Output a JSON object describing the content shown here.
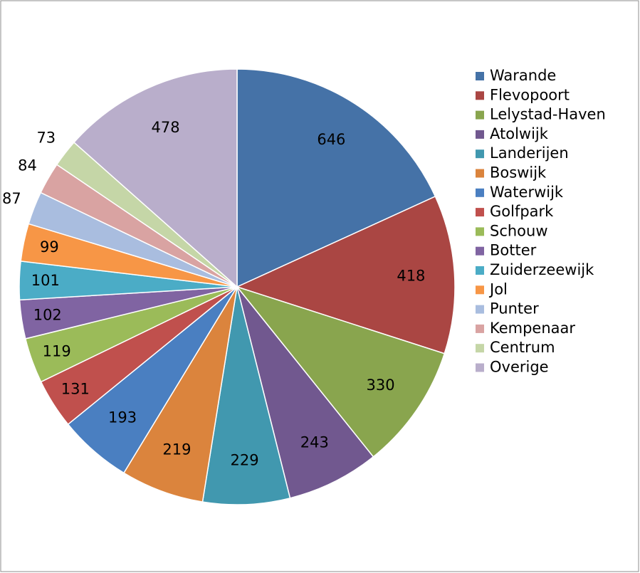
{
  "chart_data": {
    "type": "pie",
    "categories": [
      "Warande",
      "Flevopoort",
      "Lelystad-Haven",
      "Atolwijk",
      "Landerijen",
      "Boswijk",
      "Waterwijk",
      "Golfpark",
      "Schouw",
      "Botter",
      "Zuiderzeewijk",
      "Jol",
      "Punter",
      "Kempenaar",
      "Centrum",
      "Overige"
    ],
    "values": [
      646,
      418,
      330,
      243,
      229,
      219,
      193,
      131,
      119,
      102,
      101,
      99,
      87,
      84,
      73,
      478
    ],
    "colors": [
      "#4572a7",
      "#aa4643",
      "#89a54e",
      "#71588f",
      "#4198af",
      "#db843d",
      "#4a7fc1",
      "#c0504d",
      "#9bbb59",
      "#8064a2",
      "#4bacc6",
      "#f79646",
      "#a9bddf",
      "#d9a3a2",
      "#c5d6a7",
      "#b9aecb"
    ],
    "legend": "right"
  }
}
